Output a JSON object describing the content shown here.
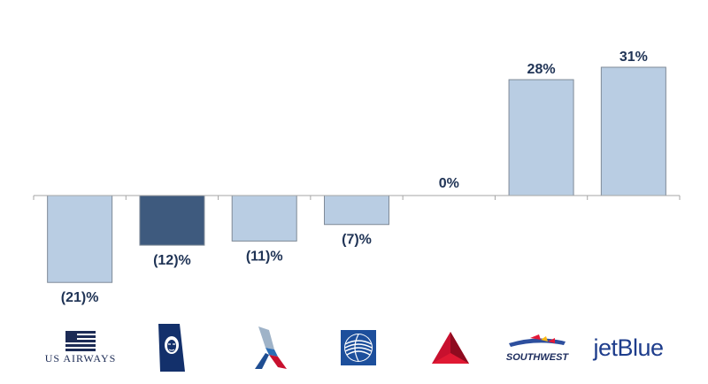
{
  "chart_data": {
    "type": "bar",
    "categories": [
      "US Airways",
      "Alaska",
      "American",
      "United",
      "Delta",
      "Southwest",
      "jetBlue"
    ],
    "values": [
      -21,
      -12,
      -11,
      -7,
      0,
      28,
      31
    ],
    "data_labels": [
      "(21)%",
      "(12)%",
      "(11)%",
      "(7)%",
      "0%",
      "28%",
      "31%"
    ],
    "highlight_index": 1,
    "ylim": [
      -30,
      40
    ],
    "grid": false,
    "title": "",
    "xlabel": "",
    "ylabel": ""
  },
  "colors": {
    "bar": "#b9cde3",
    "highlight": "#3e5a7e",
    "label": "#1f3355",
    "axis": "#a6a6a6"
  },
  "logos": {
    "us_airways": {
      "text": "US AIRWAYS",
      "icon": "us-airways-flag-icon"
    },
    "alaska": {
      "icon": "alaska-eskimo-tail-icon"
    },
    "american": {
      "icon": "american-flight-symbol-icon"
    },
    "united": {
      "icon": "united-globe-icon"
    },
    "delta": {
      "icon": "delta-widget-icon"
    },
    "southwest": {
      "text": "SOUTHWEST",
      "icon": "southwest-heart-plane-icon"
    },
    "jetblue": {
      "text": "jetBlue"
    }
  }
}
